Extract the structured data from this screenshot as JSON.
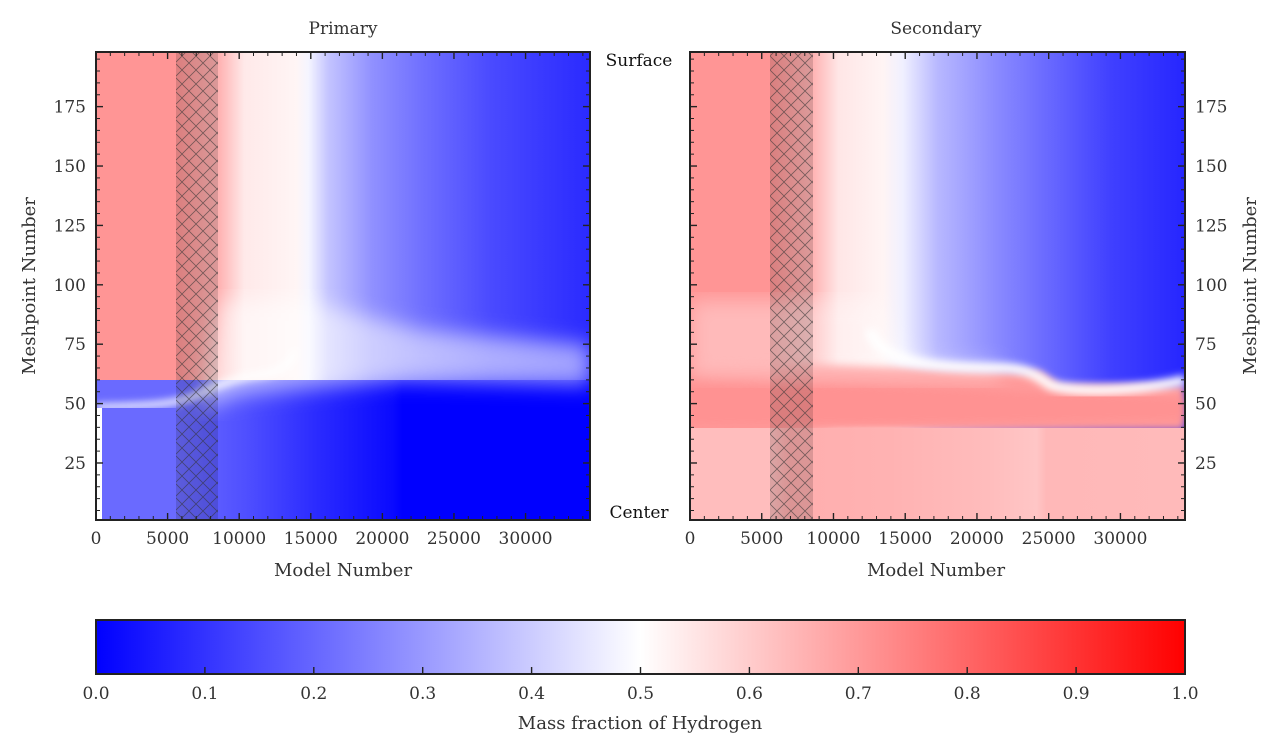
{
  "chart_data": [
    {
      "type": "heatmap",
      "title": "Primary",
      "xlabel": "Model Number",
      "ylabel": "Meshpoint Number",
      "xlim": [
        0,
        34500
      ],
      "ylim": [
        1,
        198
      ],
      "xticks": [
        0,
        5000,
        10000,
        15000,
        20000,
        25000,
        30000
      ],
      "yticks": [
        25,
        50,
        75,
        100,
        125,
        150,
        175
      ],
      "hatched_band": [
        5600,
        8600
      ],
      "regions": [
        {
          "name": "outer envelope early",
          "x": [
            0,
            5600
          ],
          "y": [
            49,
            198
          ],
          "value": 0.7
        },
        {
          "name": "envelope after transition",
          "x": [
            8600,
            14000
          ],
          "y": [
            80,
            198
          ],
          "value": 0.55
        },
        {
          "name": "envelope late",
          "x": [
            20000,
            34500
          ],
          "y": [
            80,
            198
          ],
          "value": 0.1
        },
        {
          "name": "core early",
          "x": [
            0,
            5600
          ],
          "y": [
            1,
            47
          ],
          "value": 0.26
        },
        {
          "name": "core late",
          "x": [
            21000,
            34500
          ],
          "y": [
            1,
            55
          ],
          "value": 0.0
        }
      ],
      "boundary": {
        "x": [
          400,
          5600,
          8600,
          11000,
          14000,
          20000,
          34500
        ],
        "y": [
          48,
          50,
          63,
          70,
          74,
          58,
          55
        ]
      }
    },
    {
      "type": "heatmap",
      "title": "Secondary",
      "xlabel": "Model Number",
      "ylabel": "Meshpoint Number",
      "xlim": [
        0,
        34500
      ],
      "ylim": [
        1,
        198
      ],
      "xticks": [
        0,
        5000,
        10000,
        15000,
        20000,
        25000,
        30000
      ],
      "yticks": [
        25,
        50,
        75,
        100,
        125,
        150,
        175
      ],
      "hatched_band": [
        5600,
        8600
      ],
      "regions": [
        {
          "name": "envelope early",
          "x": [
            0,
            5600
          ],
          "y": [
            40,
            198
          ],
          "value": 0.7
        },
        {
          "name": "envelope late",
          "x": [
            25000,
            34500
          ],
          "y": [
            60,
            198
          ],
          "value": 0.1
        },
        {
          "name": "shell",
          "x": [
            8600,
            24000
          ],
          "y": [
            44,
            64
          ],
          "value": 0.7
        },
        {
          "name": "core",
          "x": [
            0,
            34500
          ],
          "y": [
            1,
            40
          ],
          "value": 0.62
        }
      ],
      "boundary": {
        "x": [
          0,
          14000,
          22000,
          25000,
          34000
        ],
        "y": [
          40,
          70,
          64,
          57,
          55
        ]
      }
    },
    {
      "type": "colorbar",
      "label": "Mass fraction of Hydrogen",
      "range": [
        0.0,
        1.0
      ],
      "ticks": [
        "0.0",
        "0.1",
        "0.2",
        "0.3",
        "0.4",
        "0.5",
        "0.6",
        "0.7",
        "0.8",
        "0.9",
        "1.0"
      ],
      "colors": [
        "#0000ff",
        "#ffffff",
        "#ff0000"
      ],
      "colormap": "bwr"
    }
  ],
  "labels": {
    "surface": "Surface",
    "center": "Center"
  }
}
